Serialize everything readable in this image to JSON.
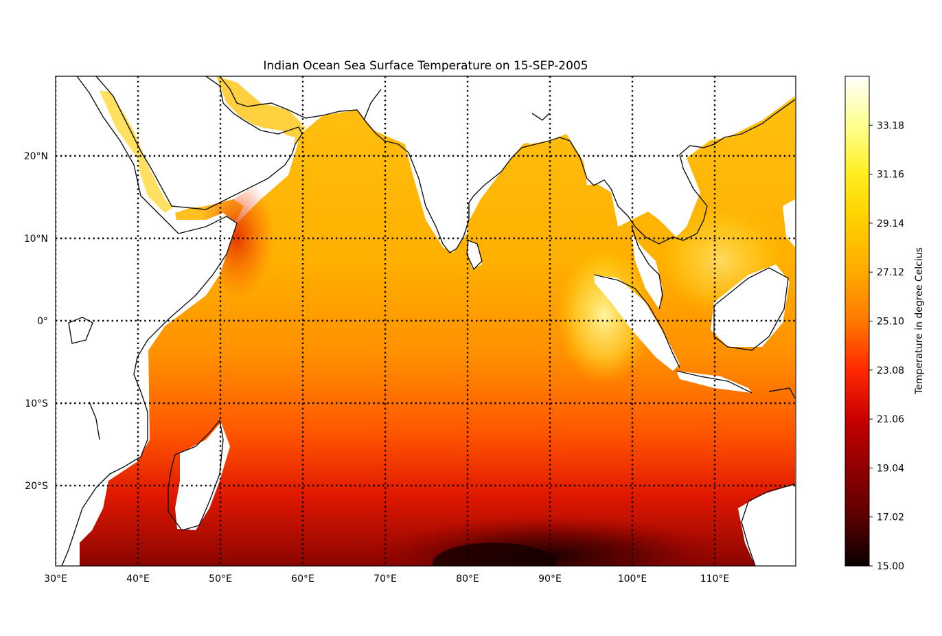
{
  "chart_data": {
    "type": "heatmap",
    "title": "Indian Ocean Sea Surface Temperature on 15-SEP-2005",
    "x_ticks": [
      {
        "value": 30,
        "label": "30°E"
      },
      {
        "value": 40,
        "label": "40°E"
      },
      {
        "value": 50,
        "label": "50°E"
      },
      {
        "value": 60,
        "label": "60°E"
      },
      {
        "value": 70,
        "label": "70°E"
      },
      {
        "value": 80,
        "label": "80°E"
      },
      {
        "value": 90,
        "label": "90°E"
      },
      {
        "value": 100,
        "label": "100°E"
      },
      {
        "value": 110,
        "label": "110°E"
      }
    ],
    "y_ticks": [
      {
        "value": 20,
        "label": "20°N"
      },
      {
        "value": 10,
        "label": "10°N"
      },
      {
        "value": 0,
        "label": "0°"
      },
      {
        "value": -10,
        "label": "10°S"
      },
      {
        "value": -20,
        "label": "20°S"
      }
    ],
    "xlim": [
      30,
      120
    ],
    "ylim": [
      -30,
      29.5
    ],
    "grid": "dotted",
    "colormap": "hot",
    "colorbar": {
      "label": "Temperature in degree Celcius",
      "range": [
        15.0,
        35.2
      ],
      "ticks": [
        "15.00",
        "17.02",
        "19.04",
        "21.06",
        "23.08",
        "25.10",
        "27.12",
        "29.14",
        "31.16",
        "33.18"
      ]
    }
  }
}
